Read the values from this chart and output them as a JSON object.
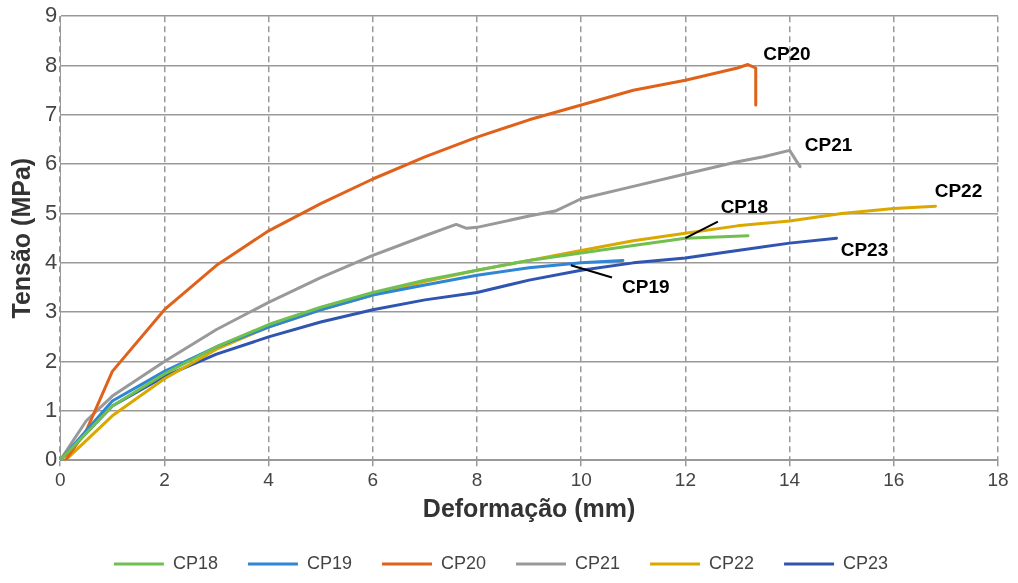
{
  "chart_data": {
    "type": "line",
    "xlabel": "Deformação (mm)",
    "ylabel": "Tensão (MPa)",
    "xlim": [
      0,
      18
    ],
    "xticks": [
      0,
      2,
      4,
      6,
      8,
      10,
      12,
      14,
      16,
      18
    ],
    "ylim": [
      0,
      9
    ],
    "yticks": [
      0,
      1,
      2,
      3,
      4,
      5,
      6,
      7,
      8,
      9
    ],
    "grid": true,
    "legend": "bottom",
    "marker": "none",
    "line_style": "solid",
    "series": [
      {
        "name": "CP18",
        "color": "#70c050",
        "x": [
          0,
          1,
          2,
          3,
          4,
          5,
          6,
          7,
          8,
          9,
          10,
          11,
          12,
          13.2
        ],
        "values": [
          0,
          1.1,
          1.75,
          2.3,
          2.75,
          3.1,
          3.4,
          3.65,
          3.85,
          4.05,
          4.2,
          4.35,
          4.5,
          4.55
        ]
      },
      {
        "name": "CP19",
        "color": "#2e86d4",
        "x": [
          0,
          1,
          2,
          3,
          4,
          5,
          6,
          7,
          8,
          9,
          10,
          10.8
        ],
        "values": [
          0,
          1.2,
          1.8,
          2.3,
          2.7,
          3.05,
          3.35,
          3.55,
          3.75,
          3.9,
          4.0,
          4.05
        ]
      },
      {
        "name": "CP20",
        "color": "#e0621a",
        "x": [
          0.1,
          0.5,
          1,
          2,
          3,
          4,
          5,
          6,
          7,
          8,
          9,
          10,
          11,
          12,
          13,
          13.2,
          13.35,
          13.35
        ],
        "values": [
          0,
          0.6,
          1.8,
          3.05,
          3.95,
          4.65,
          5.2,
          5.7,
          6.15,
          6.55,
          6.9,
          7.2,
          7.5,
          7.7,
          7.95,
          8.02,
          7.95,
          7.2
        ]
      },
      {
        "name": "CP21",
        "color": "#999999",
        "x": [
          0,
          0.5,
          1,
          2,
          3,
          4,
          5,
          6,
          7,
          7.6,
          7.8,
          8,
          9,
          9.5,
          10,
          11,
          12,
          13,
          13.5,
          14,
          14.2
        ],
        "values": [
          0,
          0.8,
          1.3,
          2.0,
          2.65,
          3.2,
          3.7,
          4.15,
          4.55,
          4.78,
          4.7,
          4.72,
          4.95,
          5.05,
          5.3,
          5.55,
          5.8,
          6.05,
          6.15,
          6.28,
          5.95
        ]
      },
      {
        "name": "CP22",
        "color": "#dba800",
        "x": [
          0.1,
          1,
          2,
          3,
          4,
          5,
          6,
          7,
          8,
          9,
          10,
          11,
          12,
          13,
          14,
          15,
          16,
          16.8
        ],
        "values": [
          0,
          0.9,
          1.65,
          2.25,
          2.7,
          3.05,
          3.35,
          3.62,
          3.85,
          4.05,
          4.25,
          4.45,
          4.6,
          4.75,
          4.85,
          5.0,
          5.1,
          5.15
        ]
      },
      {
        "name": "CP23",
        "color": "#2f55b0",
        "x": [
          0,
          1,
          2,
          3,
          4,
          5,
          6,
          7,
          8,
          9,
          10,
          11,
          12,
          13,
          14,
          14.9
        ],
        "values": [
          0,
          1.1,
          1.7,
          2.15,
          2.5,
          2.8,
          3.05,
          3.25,
          3.4,
          3.65,
          3.85,
          4.0,
          4.1,
          4.25,
          4.4,
          4.5
        ]
      }
    ],
    "annotations": [
      {
        "text": "CP20",
        "x": 13.2,
        "y": 8.02
      },
      {
        "text": "CP21",
        "x": 14,
        "y": 6.28
      },
      {
        "text": "CP22",
        "x": 16.8,
        "y": 5.15
      },
      {
        "text": "CP18",
        "x": 12,
        "y": 4.5
      },
      {
        "text": "CP19",
        "x": 9.8,
        "y": 3.95
      },
      {
        "text": "CP23",
        "x": 14.9,
        "y": 4.5
      }
    ]
  }
}
